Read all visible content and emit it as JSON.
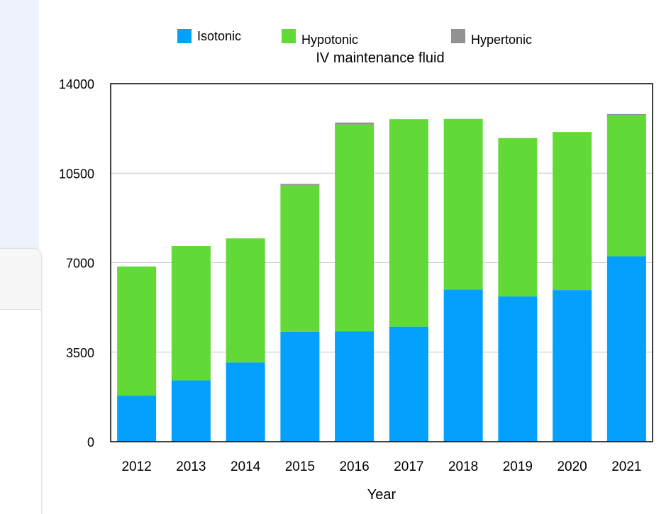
{
  "chart_data": {
    "type": "bar",
    "stacked": true,
    "title": "IV maintenance fluid",
    "xlabel": "Year",
    "ylabel": "",
    "ylim": [
      0,
      14000
    ],
    "yticks": [
      0,
      3500,
      7000,
      10500,
      14000
    ],
    "grid": true,
    "legend_position": "top",
    "categories": [
      "2012",
      "2013",
      "2014",
      "2015",
      "2016",
      "2017",
      "2018",
      "2019",
      "2020",
      "2021"
    ],
    "series": [
      {
        "name": "Isotonic",
        "color": "#03a1fd",
        "values": [
          1800,
          2400,
          3100,
          4300,
          4320,
          4500,
          5950,
          5680,
          5930,
          7250
        ]
      },
      {
        "name": "Hypotonic",
        "color": "#61d937",
        "values": [
          5050,
          5250,
          4850,
          5720,
          8080,
          8110,
          6670,
          6190,
          6180,
          5530
        ]
      },
      {
        "name": "Hypertonic",
        "color": "#929292",
        "values": [
          0,
          0,
          0,
          60,
          80,
          0,
          0,
          0,
          0,
          30
        ]
      }
    ]
  }
}
